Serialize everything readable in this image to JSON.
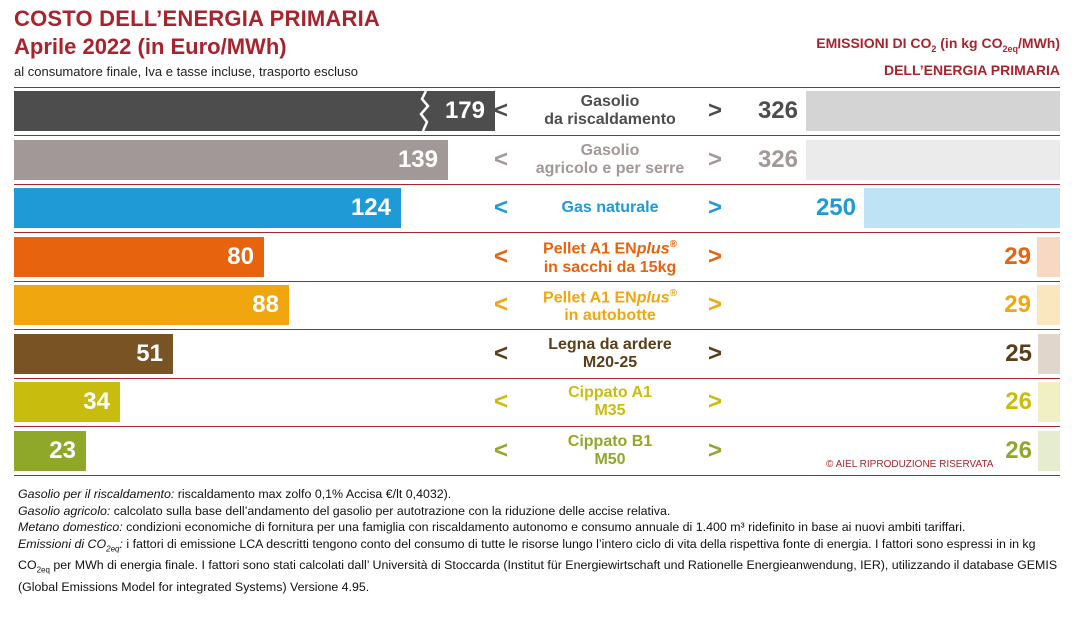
{
  "header": {
    "title_line1": "COSTO DELL’ENERGIA PRIMARIA",
    "title_line2": "Aprile 2022 (in Euro/MWh)",
    "subtitle": "al consumatore finale, Iva e tasse incluse, trasporto escluso",
    "emissions_title_pre": "EMISSIONI DI CO",
    "emissions_title_sub": "2",
    "emissions_title_mid": " (in kg CO",
    "emissions_title_sub2": "2eq",
    "emissions_title_post": "/MWh)",
    "emissions_title_line2": "DELL’ENERGIA PRIMARIA"
  },
  "chart_data": {
    "type": "bar",
    "title": "COSTO DELL’ENERGIA PRIMARIA Aprile 2022 (in Euro/MWh)",
    "secondary_title": "EMISSIONI DI CO2 (in kg CO2eq/MWh) DELL’ENERGIA PRIMARIA",
    "categories": [
      "Gasolio da riscaldamento",
      "Gasolio agricolo e per serre",
      "Gas naturale",
      "Pellet A1 ENplus® in sacchi da 15kg",
      "Pellet A1 ENplus® in autobotte",
      "Legna da ardere M20-25",
      "Cippato A1 M35",
      "Cippato B1 M50"
    ],
    "series": [
      {
        "name": "Costo (Euro/MWh)",
        "values": [
          179,
          139,
          124,
          80,
          88,
          51,
          34,
          23
        ]
      },
      {
        "name": "Emissioni (kg CO2eq/MWh)",
        "values": [
          326,
          326,
          250,
          29,
          29,
          25,
          26,
          26
        ]
      }
    ],
    "rows": [
      {
        "line1": "Gasolio",
        "line2": "da riscaldamento",
        "cost": 179,
        "emission": 326,
        "color": "#4d4d4d",
        "text_color": "#4d4d4d",
        "light_color": "#d4d4d4",
        "value_color": "#4d4d4d",
        "broken": true
      },
      {
        "line1": "Gasolio",
        "line2": "agricolo e per serre",
        "cost": 139,
        "emission": 326,
        "color": "#a29897",
        "text_color": "#a29897",
        "light_color": "#ebebeb",
        "value_color": "#a29897",
        "broken": false
      },
      {
        "line1": "Gas naturale",
        "line2": "",
        "cost": 124,
        "emission": 250,
        "color": "#1f9ad6",
        "text_color": "#1f9ad6",
        "light_color": "#bde3f4",
        "value_color": "#1f9ad6",
        "broken": false
      },
      {
        "line1": "Pellet A1 ENplus®",
        "line2": "in sacchi da 15kg",
        "cost": 80,
        "emission": 29,
        "color": "#e8630d",
        "text_color": "#e8630d",
        "light_color": "#f7d8c3",
        "value_color": "#e8630d",
        "broken": false
      },
      {
        "line1": "Pellet A1 ENplus®",
        "line2": "in autobotte",
        "cost": 88,
        "emission": 29,
        "color": "#f0a60e",
        "text_color": "#f0a60e",
        "light_color": "#fbe7bf",
        "value_color": "#f0a60e",
        "broken": false
      },
      {
        "line1": "Legna da ardere",
        "line2": "M20-25",
        "cost": 51,
        "emission": 25,
        "color": "#7a5324",
        "text_color": "#5a3e1b",
        "light_color": "#e0d6cb",
        "value_color": "#5a3e1b",
        "broken": false
      },
      {
        "line1": "Cippato A1",
        "line2": "M35",
        "cost": 34,
        "emission": 26,
        "color": "#c8bd0e",
        "text_color": "#c8bd0e",
        "light_color": "#f1efc4",
        "value_color": "#c8bd0e",
        "broken": false
      },
      {
        "line1": "Cippato B1",
        "line2": "M50",
        "cost": 23,
        "emission": 26,
        "color": "#8fa82a",
        "text_color": "#8fa82a",
        "light_color": "#e6ecd0",
        "value_color": "#8fa82a",
        "broken": false
      }
    ],
    "cost_scale_max": 179,
    "emission_scale_max": 326,
    "lt_symbol": "<",
    "gt_symbol": ">"
  },
  "copyright": "© AIEL   RIPRODUZIONE  RISERVATA",
  "notes": {
    "n1_label": "Gasolio per il riscaldamento:",
    "n1_text": " riscaldamento max zolfo 0,1% Accisa €/lt 0,4032).",
    "n2_label": "Gasolio agricolo:",
    "n2_text": " calcolato sulla base dell’andamento del gasolio per autotrazione con la riduzione delle accise relativa.",
    "n3_label": "Metano domestico:",
    "n3_text": " condizioni economiche di fornitura per una famiglia con riscaldamento autonomo e consumo annuale di 1.400 m³ ridefinito in base ai nuovi ambiti tariffari.",
    "n4_label_pre": "Emissioni di CO",
    "n4_label_sub": "2eq",
    "n4_label_post": ":",
    "n4_text1": " i fattori di emissione LCA descritti tengono conto del consumo di tutte le risorse lungo l’intero ciclo di vita della rispettiva fonte di energia. I fattori sono espressi in in kg CO",
    "n4_text_sub": "2eq",
    "n4_text2": " per MWh di energia finale. I fattori sono stati calcolati dall’ Università di Stoccarda (Institut für Energiewirtschaft und Rationelle Energieanwendung, IER), utilizzando il database GEMIS (Global Emissions Model for integrated Systems) Versione 4.95."
  }
}
